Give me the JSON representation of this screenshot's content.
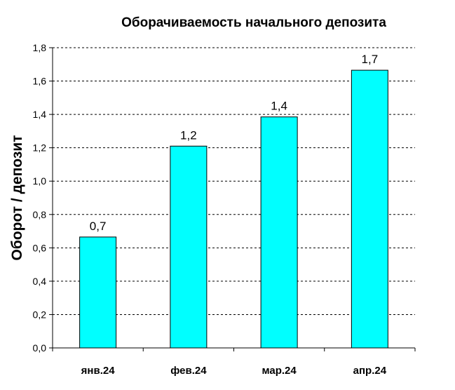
{
  "chart_data": {
    "type": "bar",
    "title": "Оборачиваемость начального депозита",
    "xlabel": "",
    "ylabel": "Оборот / депозит",
    "categories": [
      "янв.24",
      "фев.24",
      "мар.24",
      "апр.24"
    ],
    "values": [
      0.665,
      1.21,
      1.385,
      1.665
    ],
    "data_labels": [
      "0,7",
      "1,2",
      "1,4",
      "1,7"
    ],
    "y_ticks": [
      "0,0",
      "0,2",
      "0,4",
      "0,6",
      "0,8",
      "1,0",
      "1,2",
      "1,4",
      "1,6",
      "1,8"
    ],
    "ylim": [
      0,
      1.8
    ],
    "grid": true,
    "bar_color": "#00FFFF",
    "grid_color": "#000000"
  }
}
